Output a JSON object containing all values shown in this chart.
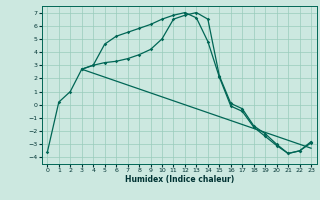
{
  "xlabel": "Humidex (Indice chaleur)",
  "bg_color": "#cce8e0",
  "grid_color": "#99ccbb",
  "line_color": "#006655",
  "xlim": [
    -0.5,
    23.5
  ],
  "ylim": [
    -4.5,
    7.5
  ],
  "xticks": [
    0,
    1,
    2,
    3,
    4,
    5,
    6,
    7,
    8,
    9,
    10,
    11,
    12,
    13,
    14,
    15,
    16,
    17,
    18,
    19,
    20,
    21,
    22,
    23
  ],
  "yticks": [
    -4,
    -3,
    -2,
    -1,
    0,
    1,
    2,
    3,
    4,
    5,
    6,
    7
  ],
  "curve1_x": [
    0,
    1,
    2,
    3,
    4,
    5,
    6,
    7,
    8,
    9,
    10,
    11,
    12,
    13,
    14,
    15,
    16,
    17,
    18,
    19,
    20,
    21,
    22,
    23
  ],
  "curve1_y": [
    -3.6,
    0.2,
    1.0,
    2.7,
    3.0,
    3.2,
    3.3,
    3.5,
    3.8,
    4.2,
    5.0,
    6.5,
    6.8,
    7.0,
    6.5,
    2.2,
    0.1,
    -0.3,
    -1.6,
    -2.2,
    -3.0,
    -3.7,
    -3.5,
    -2.8
  ],
  "curve2_x": [
    3,
    4,
    5,
    6,
    7,
    8,
    9,
    10,
    11,
    12,
    13,
    14,
    15,
    16,
    17,
    18,
    19,
    20,
    21,
    22,
    23
  ],
  "curve2_y": [
    2.7,
    3.0,
    4.6,
    5.2,
    5.5,
    5.8,
    6.1,
    6.5,
    6.8,
    7.0,
    6.6,
    4.8,
    2.1,
    -0.1,
    -0.5,
    -1.7,
    -2.4,
    -3.1,
    -3.7,
    -3.5,
    -2.9
  ],
  "curve3_x": [
    3,
    23
  ],
  "curve3_y": [
    2.7,
    -3.3
  ]
}
